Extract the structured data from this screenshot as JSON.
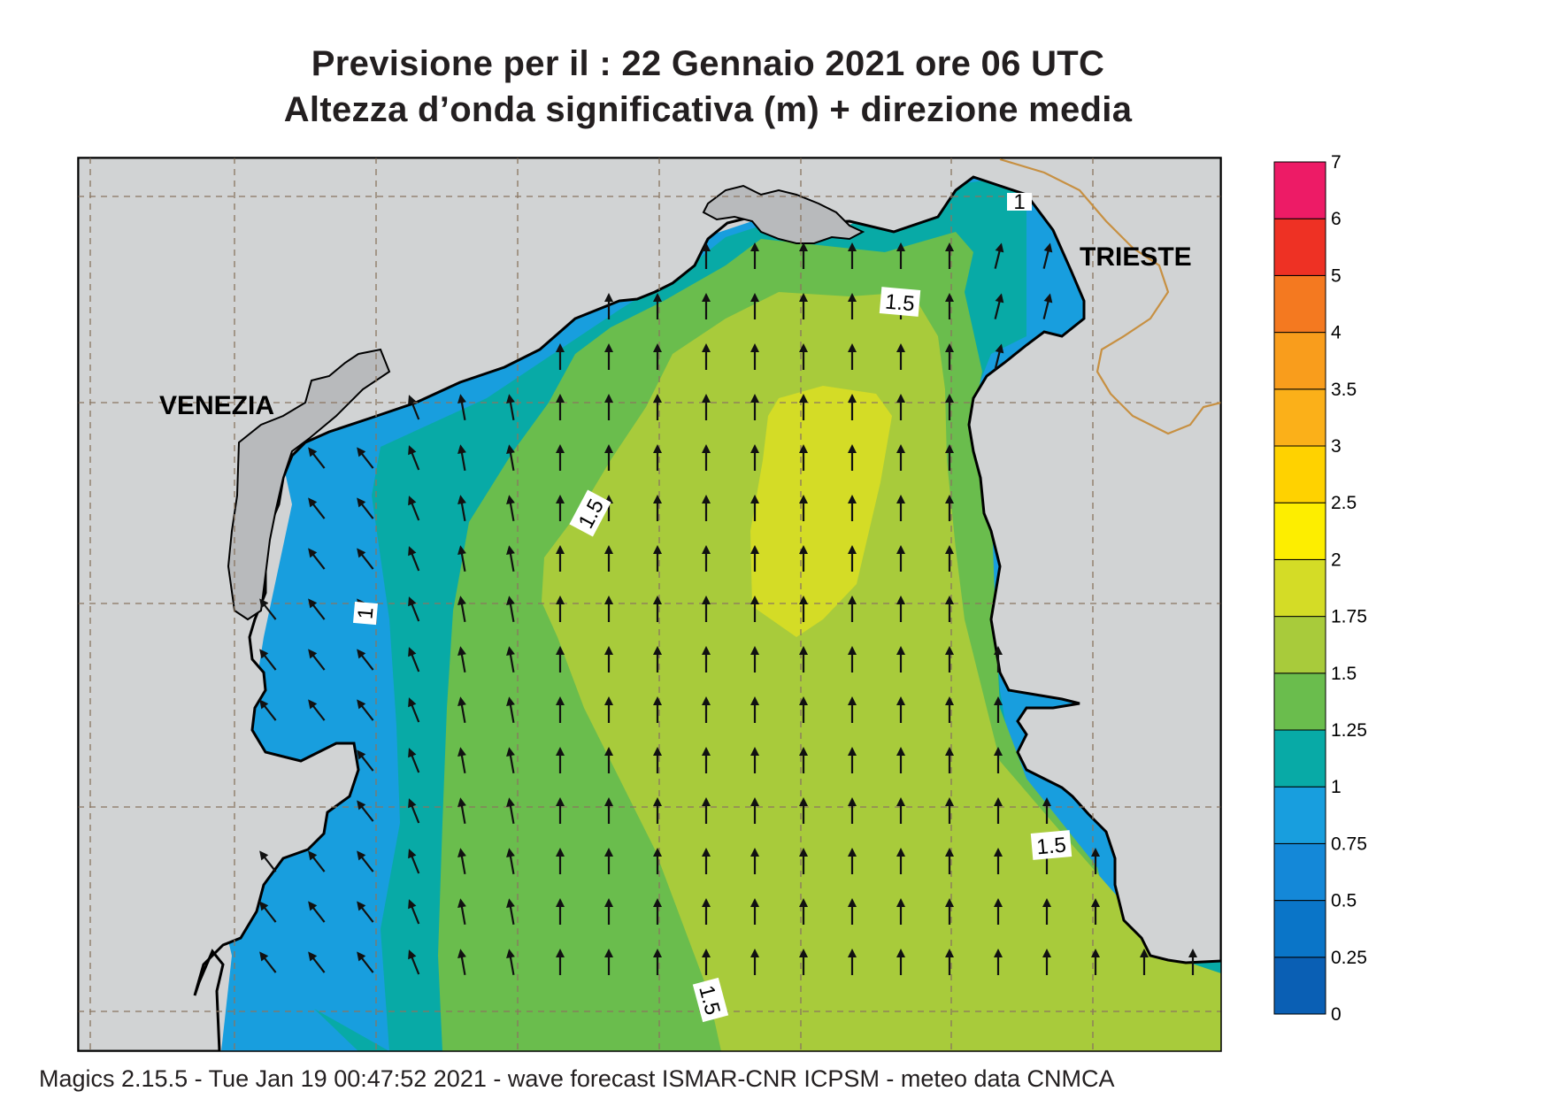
{
  "title": {
    "line1": "Previsione per il  :  22  Gennaio  2021   ore 06 UTC",
    "line2": "Altezza d’onda significativa (m) + direzione media"
  },
  "cities": {
    "venezia": "VENEZIA",
    "trieste": "TRIESTE"
  },
  "contour_labels": [
    "1.5",
    "1.5",
    "1.5",
    "1.5",
    "1",
    "1"
  ],
  "colorbar": {
    "ticks": [
      "0",
      "0.25",
      "0.5",
      "0.75",
      "1",
      "1.25",
      "1.5",
      "1.75",
      "2",
      "2.5",
      "3",
      "3.5",
      "4",
      "5",
      "6",
      "7"
    ],
    "colors": [
      "#0a5fb4",
      "#0a75c8",
      "#1488d8",
      "#189ede",
      "#08aaa6",
      "#6abd4d",
      "#a8cb3b",
      "#d4dc26",
      "#fdee00",
      "#ffd200",
      "#fbb019",
      "#f99d1c",
      "#f47920",
      "#ee3124",
      "#ed1b66"
    ]
  },
  "footer": "Magics 2.15.5 - Tue Jan 19 00:47:52 2021 - wave forecast  ISMAR-CNR  ICPSM - meteo data   CNMCA"
}
